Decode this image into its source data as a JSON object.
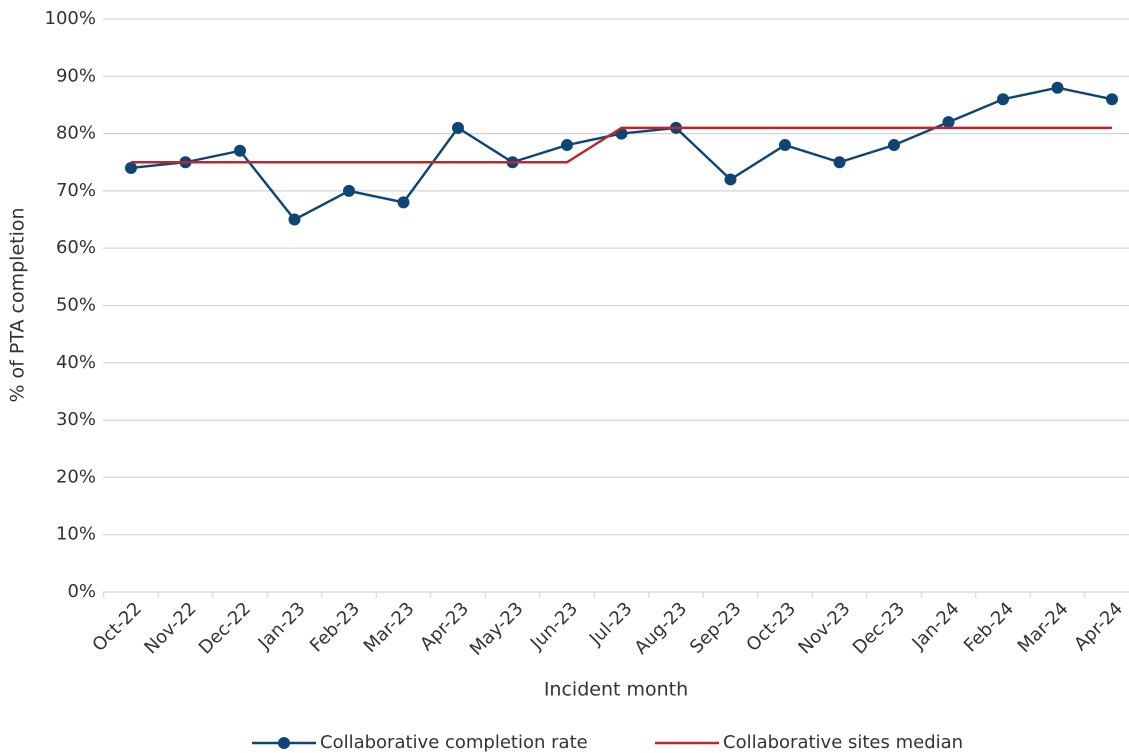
{
  "chart_data": {
    "type": "line",
    "x_label": "Incident month",
    "y_label": "% of PTA completion",
    "categories": [
      "Oct-22",
      "Nov-22",
      "Dec-22",
      "Jan-23",
      "Feb-23",
      "Mar-23",
      "Apr-23",
      "May-23",
      "Jun-23",
      "Jul-23",
      "Aug-23",
      "Sep-23",
      "Oct-23",
      "Nov-23",
      "Dec-23",
      "Jan-24",
      "Feb-24",
      "Mar-24",
      "Apr-24"
    ],
    "series": [
      {
        "name": "Collaborative completion rate",
        "color": "#0e4574",
        "markers": true,
        "values": [
          74,
          75,
          77,
          65,
          70,
          68,
          81,
          75,
          78,
          80,
          81,
          72,
          78,
          75,
          78,
          82,
          86,
          88,
          86
        ]
      },
      {
        "name": "Collaborative sites median",
        "color": "#b8282e",
        "markers": false,
        "values": [
          75,
          75,
          75,
          75,
          75,
          75,
          75,
          75,
          75,
          81,
          81,
          81,
          81,
          81,
          81,
          81,
          81,
          81,
          81
        ]
      }
    ],
    "ylim": [
      0,
      100
    ],
    "yticks": [
      {
        "value": 0,
        "label": "0%"
      },
      {
        "value": 10,
        "label": "10%"
      },
      {
        "value": 20,
        "label": "20%"
      },
      {
        "value": 30,
        "label": "30%"
      },
      {
        "value": 40,
        "label": "40%"
      },
      {
        "value": 50,
        "label": "50%"
      },
      {
        "value": 60,
        "label": "60%"
      },
      {
        "value": 70,
        "label": "70%"
      },
      {
        "value": 80,
        "label": "80%"
      },
      {
        "value": 90,
        "label": "90%"
      },
      {
        "value": 100,
        "label": "100%"
      }
    ],
    "grid": true,
    "legend": "bottom"
  }
}
